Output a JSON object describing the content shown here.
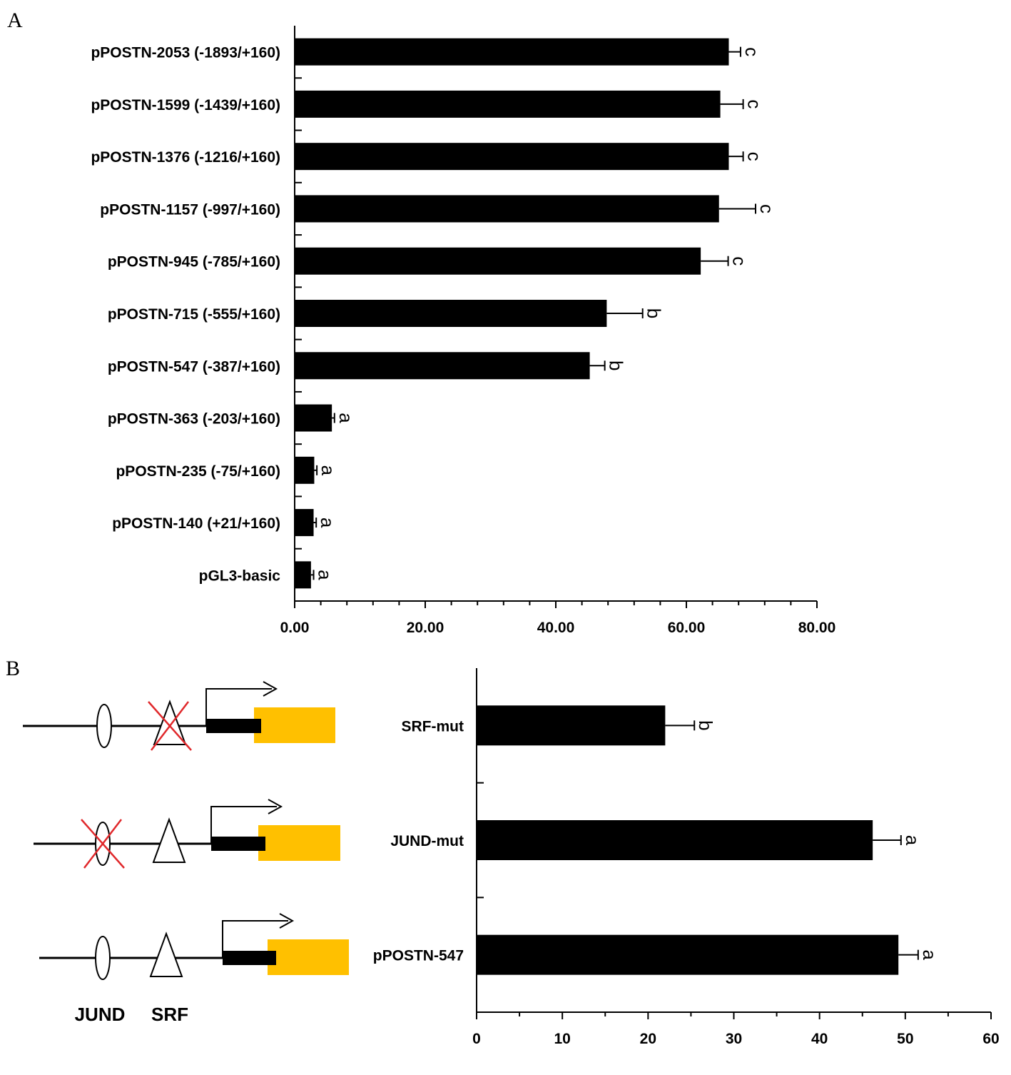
{
  "panels": {
    "a_letter": "A",
    "b_letter": "B"
  },
  "chart_data": [
    {
      "type": "bar",
      "orientation": "horizontal",
      "title": "",
      "xlabel": "",
      "ylabel": "",
      "xlim": [
        0,
        80
      ],
      "xticks": [
        0,
        20,
        40,
        60,
        80
      ],
      "xtick_labels": [
        "0.00",
        "20.00",
        "40.00",
        "60.00",
        "80.00"
      ],
      "categories": [
        "pPOSTN-2053 (-1893/+160)",
        "pPOSTN-1599 (-1439/+160)",
        "pPOSTN-1376 (-1216/+160)",
        "pPOSTN-1157 (-997/+160)",
        "pPOSTN-945 (-785/+160)",
        "pPOSTN-715 (-555/+160)",
        "pPOSTN-547 (-387/+160)",
        "pPOSTN-363 (-203/+160)",
        "pPOSTN-235 (-75/+160)",
        "pPOSTN-140 (+21/+160)",
        "pGL3-basic"
      ],
      "values": [
        66.5,
        65.2,
        66.5,
        65.0,
        62.2,
        47.8,
        45.2,
        5.7,
        3.0,
        2.9,
        2.5
      ],
      "errors": [
        1.8,
        3.5,
        2.2,
        5.6,
        4.2,
        5.5,
        2.3,
        0.4,
        0.4,
        0.4,
        0.4
      ],
      "significance": [
        "c",
        "c",
        "c",
        "c",
        "c",
        "b",
        "b",
        "a",
        "a",
        "a",
        "a"
      ],
      "colors": {
        "bar": "#000000"
      }
    },
    {
      "type": "bar",
      "orientation": "horizontal",
      "title": "",
      "xlabel": "",
      "ylabel": "",
      "xlim": [
        0,
        60
      ],
      "xticks": [
        0,
        10,
        20,
        30,
        40,
        50,
        60
      ],
      "xtick_labels": [
        "0",
        "10",
        "20",
        "30",
        "40",
        "50",
        "60"
      ],
      "categories": [
        "SRF-mut",
        "JUND-mut",
        "pPOSTN-547"
      ],
      "values": [
        22.0,
        46.2,
        49.2
      ],
      "errors": [
        3.4,
        3.3,
        2.3
      ],
      "significance": [
        "b",
        "a",
        "a"
      ],
      "colors": {
        "bar": "#000000"
      }
    }
  ],
  "diagram": {
    "site_labels": {
      "jund": "JUND",
      "srf": "SRF"
    },
    "constructs": [
      {
        "name": "SRF-mut",
        "jund_mutated": false,
        "srf_mutated": true
      },
      {
        "name": "JUND-mut",
        "jund_mutated": true,
        "srf_mutated": false
      },
      {
        "name": "pPOSTN-547",
        "jund_mutated": false,
        "srf_mutated": false
      }
    ],
    "colors": {
      "reporter": "#FFC000",
      "mutation_cross": "#E0282B",
      "line": "#000000"
    }
  }
}
